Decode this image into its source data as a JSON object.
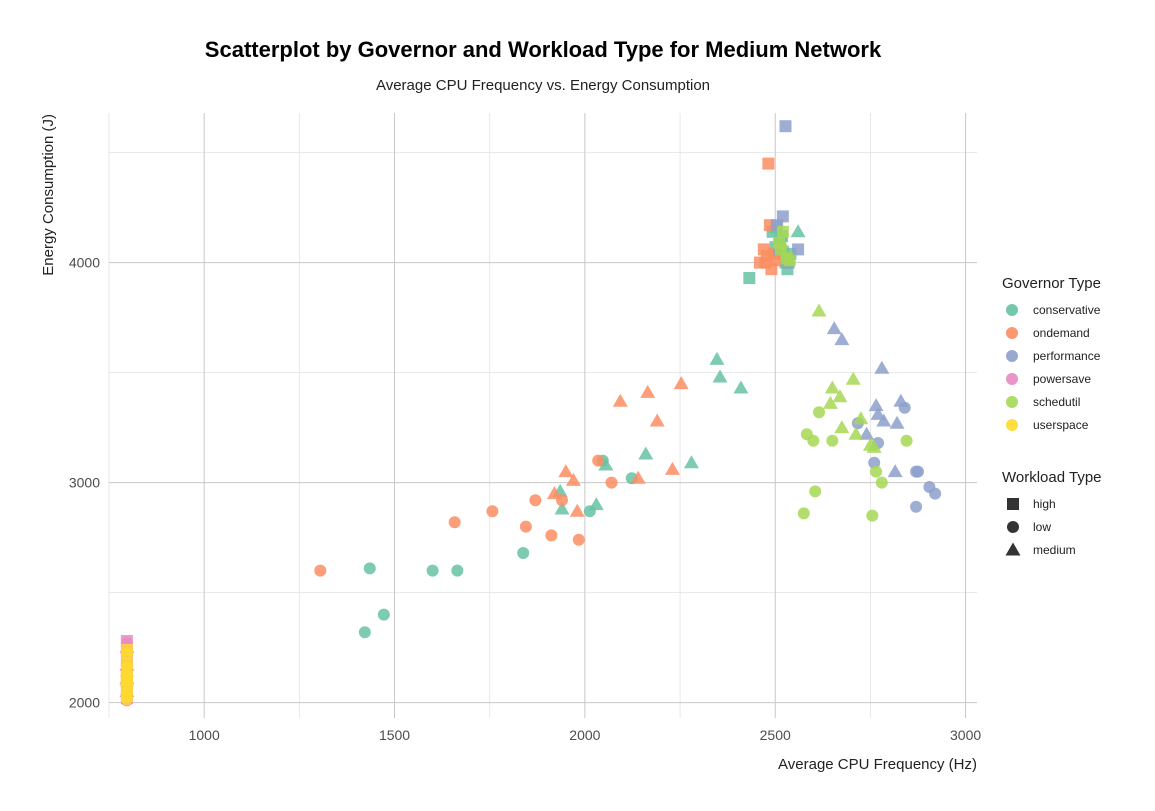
{
  "chart_data": {
    "type": "scatter",
    "title": "Scatterplot by Governor and Workload Type for Medium Network",
    "subtitle": "Average CPU Frequency vs. Energy Consumption",
    "xlabel": "Average CPU Frequency (Hz)",
    "ylabel": "Energy Consumption (J)",
    "xlim": [
      750,
      3030
    ],
    "ylim": [
      1930,
      4680
    ],
    "x_ticks": [
      1000,
      1500,
      2000,
      2500,
      3000
    ],
    "y_ticks": [
      2000,
      3000,
      4000
    ],
    "grid": true,
    "legend_placement": "right",
    "color_legend": {
      "title": "Governor Type",
      "entries": [
        {
          "name": "conservative",
          "color": "#66c2a5"
        },
        {
          "name": "ondemand",
          "color": "#fc8d62"
        },
        {
          "name": "performance",
          "color": "#8da0cb"
        },
        {
          "name": "powersave",
          "color": "#e78ac3"
        },
        {
          "name": "schedutil",
          "color": "#a6d854"
        },
        {
          "name": "userspace",
          "color": "#ffd92f"
        }
      ]
    },
    "shape_legend": {
      "title": "Workload Type",
      "entries": [
        {
          "name": "high",
          "shape": "square"
        },
        {
          "name": "low",
          "shape": "circle"
        },
        {
          "name": "medium",
          "shape": "triangle"
        }
      ]
    },
    "series": [
      {
        "governor": "conservative",
        "workload": "high",
        "points": [
          [
            2432,
            3930
          ],
          [
            2493,
            4140
          ],
          [
            2501,
            4070
          ],
          [
            2512,
            4100
          ],
          [
            2520,
            4050
          ],
          [
            2527,
            4000
          ],
          [
            2532,
            3970
          ],
          [
            2540,
            4040
          ],
          [
            2503,
            4160
          ],
          [
            2518,
            4120
          ]
        ]
      },
      {
        "governor": "conservative",
        "workload": "low",
        "points": [
          [
            1422,
            2320
          ],
          [
            1435,
            2610
          ],
          [
            1472,
            2400
          ],
          [
            1600,
            2600
          ],
          [
            1665,
            2600
          ],
          [
            1838,
            2680
          ],
          [
            2013,
            2870
          ],
          [
            2047,
            3100
          ],
          [
            2123,
            3020
          ]
        ]
      },
      {
        "governor": "conservative",
        "workload": "medium",
        "points": [
          [
            1935,
            2960
          ],
          [
            1940,
            2880
          ],
          [
            2030,
            2900
          ],
          [
            2055,
            3080
          ],
          [
            2160,
            3130
          ],
          [
            2280,
            3090
          ],
          [
            2347,
            3560
          ],
          [
            2355,
            3480
          ],
          [
            2410,
            3430
          ],
          [
            2560,
            4140
          ]
        ]
      },
      {
        "governor": "ondemand",
        "workload": "high",
        "points": [
          [
            2460,
            4000
          ],
          [
            2470,
            4060
          ],
          [
            2478,
            4030
          ],
          [
            2482,
            4450
          ],
          [
            2486,
            4170
          ],
          [
            2490,
            3970
          ],
          [
            2497,
            4040
          ],
          [
            2500,
            4010
          ],
          [
            2474,
            4000
          ]
        ]
      },
      {
        "governor": "ondemand",
        "workload": "low",
        "points": [
          [
            1305,
            2600
          ],
          [
            1658,
            2820
          ],
          [
            1757,
            2870
          ],
          [
            1845,
            2800
          ],
          [
            1870,
            2920
          ],
          [
            1912,
            2760
          ],
          [
            1940,
            2920
          ],
          [
            1984,
            2740
          ],
          [
            2035,
            3100
          ],
          [
            2070,
            3000
          ]
        ]
      },
      {
        "governor": "ondemand",
        "workload": "medium",
        "points": [
          [
            1920,
            2950
          ],
          [
            1950,
            3050
          ],
          [
            1970,
            3010
          ],
          [
            1980,
            2870
          ],
          [
            2093,
            3370
          ],
          [
            2140,
            3020
          ],
          [
            2165,
            3410
          ],
          [
            2190,
            3280
          ],
          [
            2230,
            3060
          ],
          [
            2253,
            3450
          ]
        ]
      },
      {
        "governor": "performance",
        "workload": "high",
        "points": [
          [
            2505,
            4170
          ],
          [
            2510,
            4060
          ],
          [
            2520,
            4210
          ],
          [
            2527,
            4620
          ],
          [
            2535,
            4000
          ],
          [
            2560,
            4060
          ]
        ]
      },
      {
        "governor": "performance",
        "workload": "low",
        "points": [
          [
            2717,
            3270
          ],
          [
            2760,
            3090
          ],
          [
            2770,
            3180
          ],
          [
            2840,
            3340
          ],
          [
            2870,
            3050
          ],
          [
            2875,
            3050
          ],
          [
            2905,
            2980
          ],
          [
            2920,
            2950
          ],
          [
            2870,
            2890
          ]
        ]
      },
      {
        "governor": "performance",
        "workload": "medium",
        "points": [
          [
            2655,
            3700
          ],
          [
            2675,
            3650
          ],
          [
            2740,
            3220
          ],
          [
            2765,
            3350
          ],
          [
            2770,
            3310
          ],
          [
            2780,
            3520
          ],
          [
            2785,
            3280
          ],
          [
            2815,
            3050
          ],
          [
            2820,
            3270
          ],
          [
            2830,
            3370
          ]
        ]
      },
      {
        "governor": "powersave",
        "workload": "high",
        "points": [
          [
            797,
            2280
          ],
          [
            797,
            2240
          ],
          [
            797,
            2200
          ],
          [
            797,
            2150
          ],
          [
            797,
            2100
          ],
          [
            797,
            2060
          ],
          [
            797,
            2020
          ]
        ]
      },
      {
        "governor": "powersave",
        "workload": "low",
        "points": [
          [
            797,
            2270
          ],
          [
            797,
            2230
          ],
          [
            797,
            2180
          ],
          [
            797,
            2130
          ],
          [
            797,
            2080
          ],
          [
            797,
            2040
          ],
          [
            797,
            2010
          ]
        ]
      },
      {
        "governor": "powersave",
        "workload": "medium",
        "points": [
          [
            797,
            2250
          ],
          [
            797,
            2170
          ],
          [
            797,
            2110
          ],
          [
            797,
            2050
          ]
        ]
      },
      {
        "governor": "schedutil",
        "workload": "high",
        "points": [
          [
            2510,
            4090
          ],
          [
            2520,
            4140
          ],
          [
            2530,
            4020
          ],
          [
            2538,
            4010
          ],
          [
            2515,
            4060
          ]
        ]
      },
      {
        "governor": "schedutil",
        "workload": "low",
        "points": [
          [
            2575,
            2860
          ],
          [
            2583,
            3220
          ],
          [
            2600,
            3190
          ],
          [
            2605,
            2960
          ],
          [
            2615,
            3320
          ],
          [
            2650,
            3190
          ],
          [
            2755,
            2850
          ],
          [
            2765,
            3050
          ],
          [
            2780,
            3000
          ],
          [
            2845,
            3190
          ]
        ]
      },
      {
        "governor": "schedutil",
        "workload": "medium",
        "points": [
          [
            2615,
            3780
          ],
          [
            2645,
            3360
          ],
          [
            2650,
            3430
          ],
          [
            2670,
            3390
          ],
          [
            2675,
            3250
          ],
          [
            2705,
            3470
          ],
          [
            2712,
            3220
          ],
          [
            2725,
            3290
          ],
          [
            2750,
            3170
          ],
          [
            2760,
            3160
          ]
        ]
      },
      {
        "governor": "userspace",
        "workload": "high",
        "points": [
          [
            797,
            2240
          ],
          [
            797,
            2180
          ],
          [
            797,
            2120
          ],
          [
            797,
            2080
          ],
          [
            797,
            2030
          ]
        ]
      },
      {
        "governor": "userspace",
        "workload": "low",
        "points": [
          [
            797,
            2220
          ],
          [
            797,
            2160
          ],
          [
            797,
            2100
          ],
          [
            797,
            2050
          ],
          [
            797,
            2015
          ]
        ]
      },
      {
        "governor": "userspace",
        "workload": "medium",
        "points": [
          [
            797,
            2140
          ],
          [
            797,
            2100
          ]
        ]
      }
    ]
  }
}
